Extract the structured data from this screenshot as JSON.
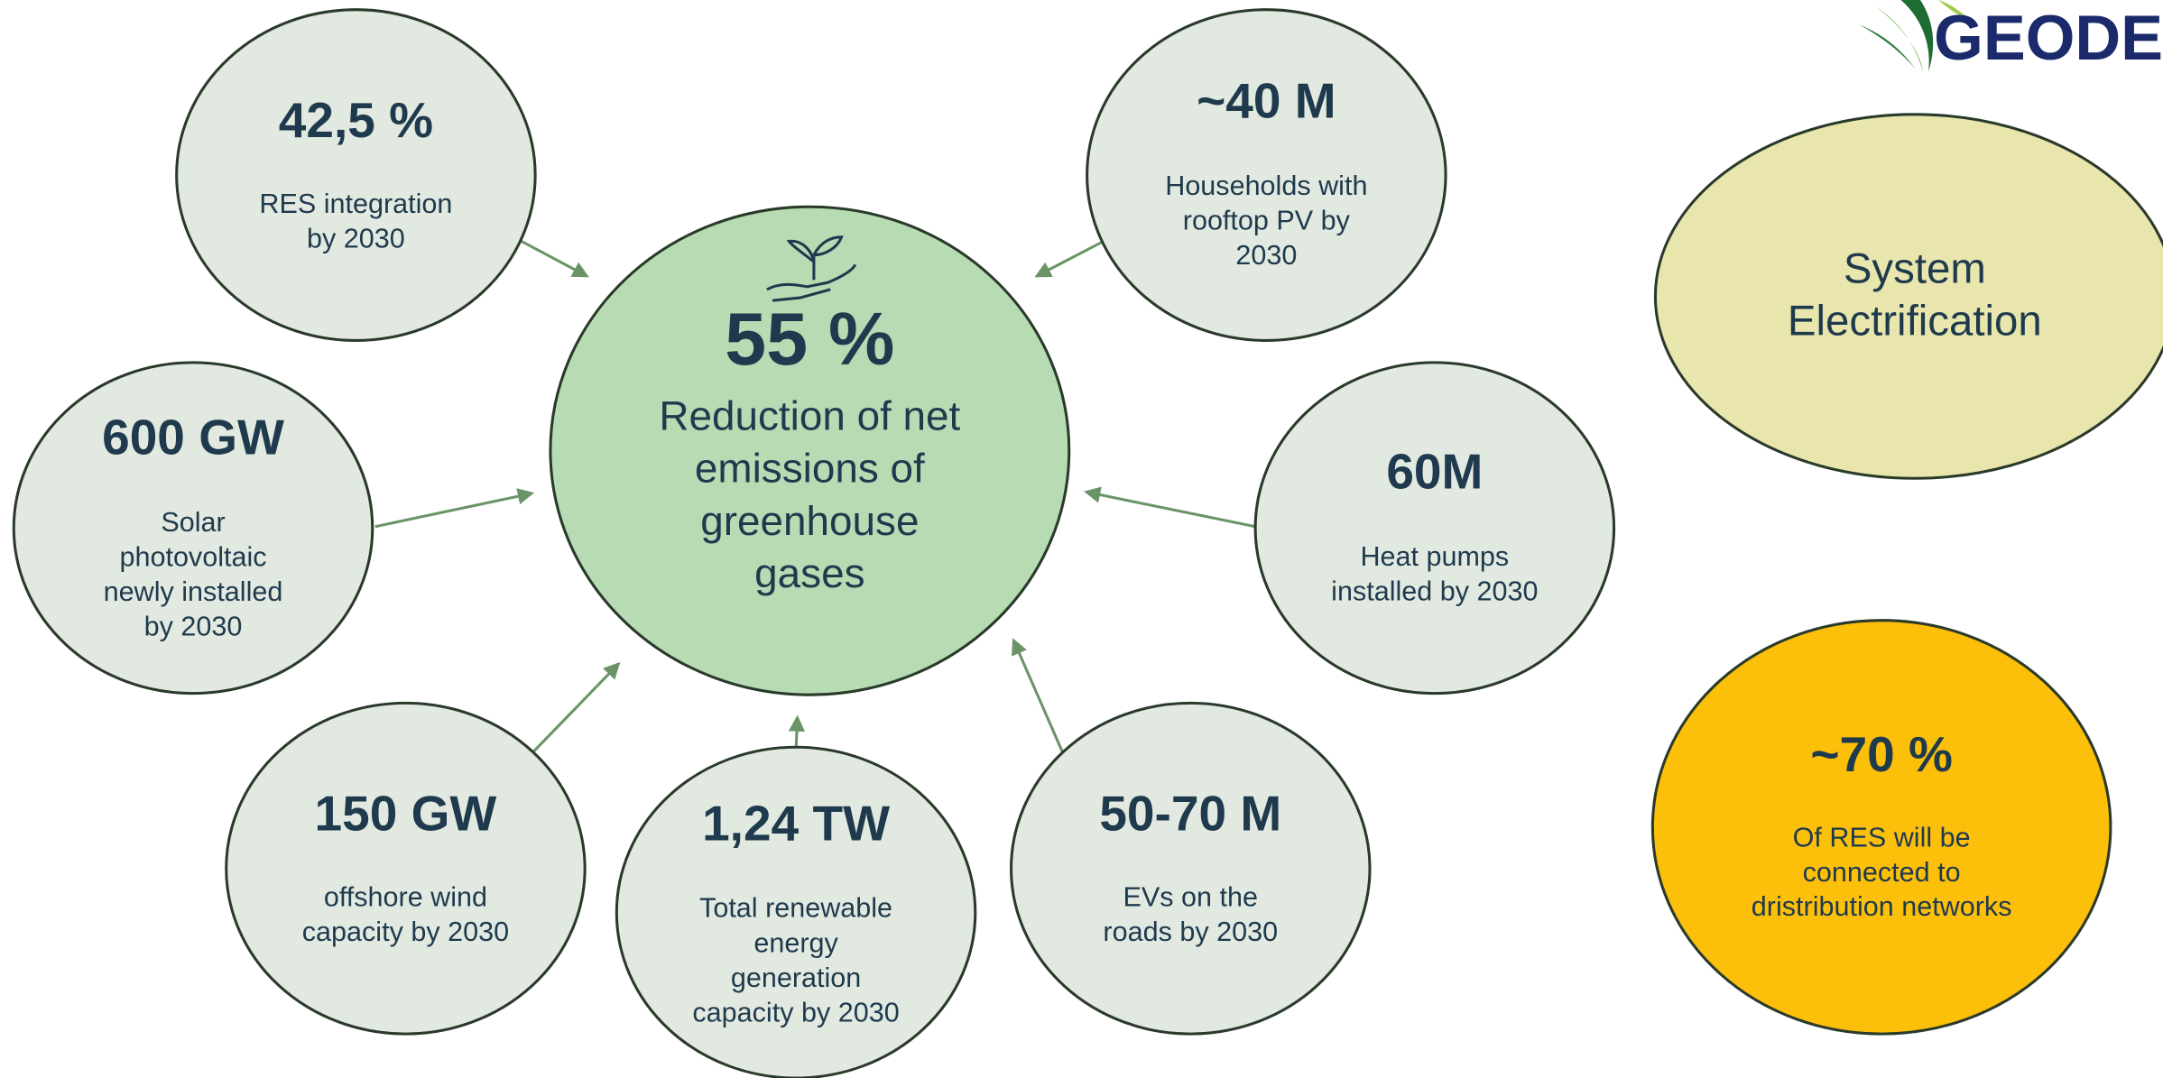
{
  "logo": {
    "text": "GEODE"
  },
  "center": {
    "title": "55 %",
    "lines": [
      "Reduction of net",
      "emissions of",
      "greenhouse",
      "gases"
    ]
  },
  "nodes": [
    {
      "title": "42,5 %",
      "lines": [
        "RES integration",
        "by 2030"
      ]
    },
    {
      "title": "600 GW",
      "lines": [
        "Solar",
        "photovoltaic",
        "newly installed",
        "by 2030"
      ]
    },
    {
      "title": "150 GW",
      "lines": [
        "offshore wind",
        "capacity by 2030"
      ]
    },
    {
      "title": "1,24 TW",
      "lines": [
        "Total renewable",
        "energy",
        "generation",
        "capacity by 2030"
      ]
    },
    {
      "title": "50-70 M",
      "lines": [
        "EVs on the",
        "roads by 2030"
      ]
    },
    {
      "title": "60M",
      "lines": [
        "Heat pumps",
        "installed by 2030"
      ]
    },
    {
      "title": "~40 M",
      "lines": [
        "Households with",
        "rooftop PV by",
        "2030"
      ]
    }
  ],
  "side": {
    "electrification": {
      "lines": [
        "System",
        "Electrification"
      ]
    },
    "distribution": {
      "title": "~70 %",
      "lines": [
        "Of RES will be",
        "connected to",
        "dristribution networks"
      ]
    }
  }
}
